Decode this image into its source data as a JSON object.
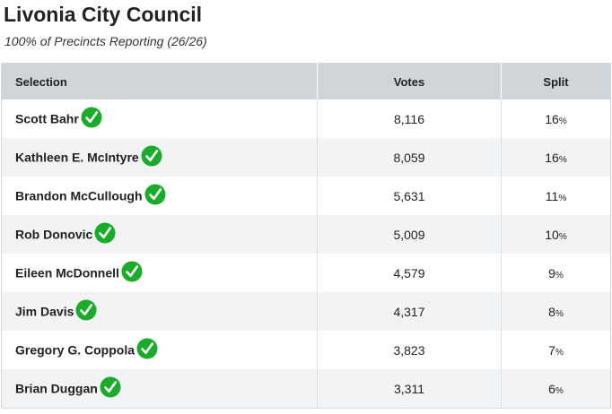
{
  "header": {
    "title": "Livonia City Council",
    "subtitle": "100% of Precincts Reporting (26/26)"
  },
  "table": {
    "columns": [
      "Selection",
      "Votes",
      "Split"
    ],
    "rows": [
      {
        "name": "Scott Bahr",
        "votes": "8,116",
        "split": "16",
        "unit": "%",
        "winner_icon": "checkmark-circle-icon"
      },
      {
        "name": "Kathleen E. McIntyre",
        "votes": "8,059",
        "split": "16",
        "unit": "%",
        "winner_icon": "checkmark-circle-icon"
      },
      {
        "name": "Brandon McCullough",
        "votes": "5,631",
        "split": "11",
        "unit": "%",
        "winner_icon": "checkmark-circle-icon"
      },
      {
        "name": "Rob Donovic",
        "votes": "5,009",
        "split": "10",
        "unit": "%",
        "winner_icon": "checkmark-circle-icon"
      },
      {
        "name": "Eileen McDonnell",
        "votes": "4,579",
        "split": "9",
        "unit": "%",
        "winner_icon": "checkmark-circle-icon"
      },
      {
        "name": "Jim Davis",
        "votes": "4,317",
        "split": "8",
        "unit": "%",
        "winner_icon": "checkmark-circle-icon"
      },
      {
        "name": "Gregory G. Coppola",
        "votes": "3,823",
        "split": "7",
        "unit": "%",
        "winner_icon": "checkmark-circle-icon"
      },
      {
        "name": "Brian Duggan",
        "votes": "3,311",
        "split": "6",
        "unit": "%",
        "winner_icon": "checkmark-circle-icon"
      }
    ]
  },
  "colors": {
    "header_bg": "#cfd5d9",
    "stripe_bg": "#f2f3f4",
    "check_green": "#1aab2a"
  }
}
